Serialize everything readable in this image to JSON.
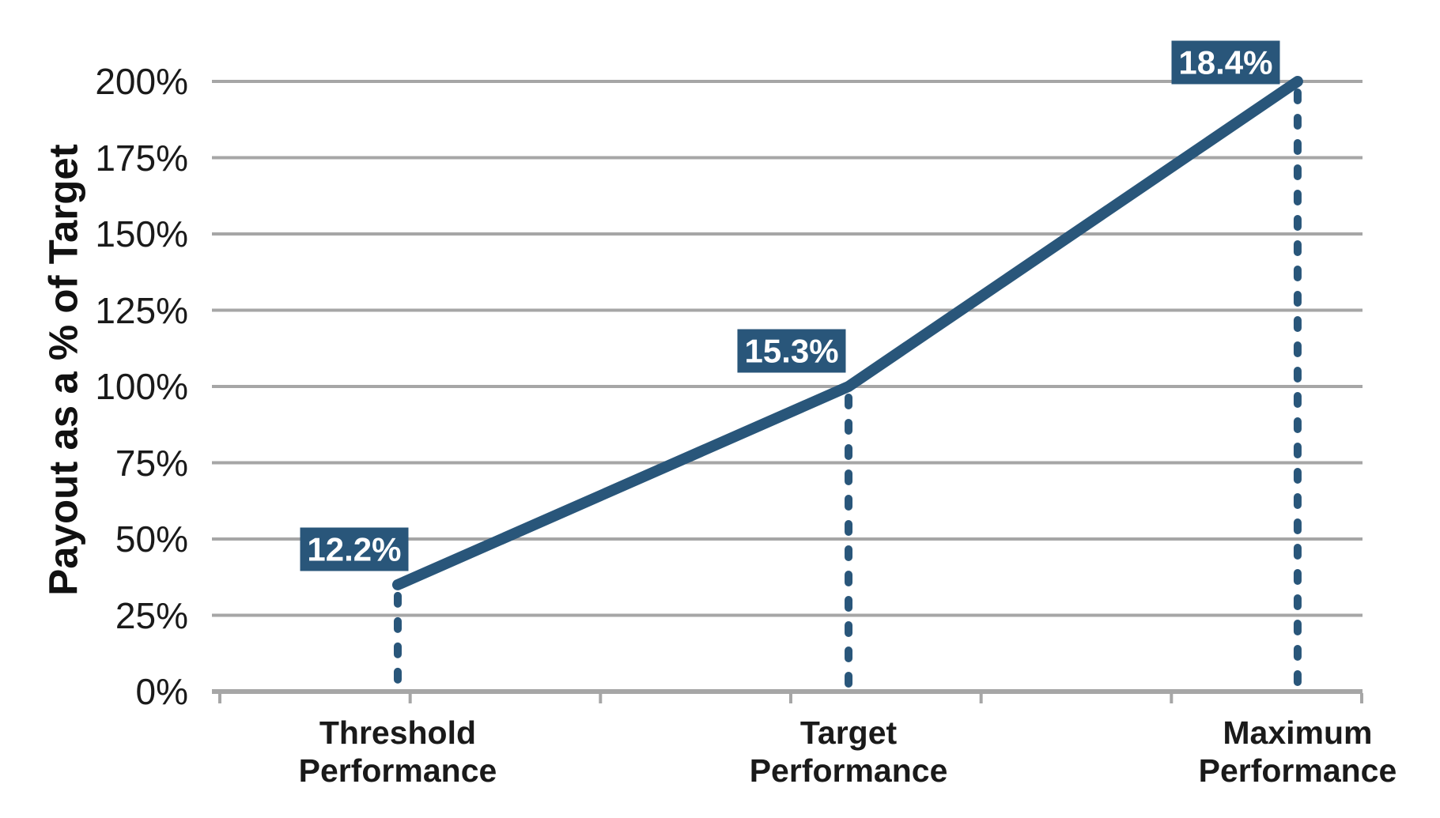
{
  "chart_data": {
    "type": "line",
    "title": "",
    "xlabel": "",
    "ylabel": "Payout as a % of Target",
    "categories": [
      [
        "Threshold",
        "Performance"
      ],
      [
        "Target",
        "Performance"
      ],
      [
        "Maximum",
        "Performance"
      ]
    ],
    "series": [
      {
        "name": "Payout as a % of Target",
        "values": [
          35,
          100,
          200
        ],
        "point_labels": [
          "12.2%",
          "15.3%",
          "18.4%"
        ]
      }
    ],
    "ylim": [
      0,
      200
    ],
    "y_ticks": [
      {
        "value": 0,
        "label": "0%"
      },
      {
        "value": 25,
        "label": "25%"
      },
      {
        "value": 50,
        "label": "50%"
      },
      {
        "value": 75,
        "label": "75%"
      },
      {
        "value": 100,
        "label": "100%"
      },
      {
        "value": 125,
        "label": "125%"
      },
      {
        "value": 150,
        "label": "150%"
      },
      {
        "value": 175,
        "label": "175%"
      },
      {
        "value": 200,
        "label": "200%"
      }
    ],
    "grid": true,
    "legend": false,
    "drop_lines": "dashed vertical lines from each data point to the x-axis",
    "colors": {
      "line": "#29567A",
      "grid": "#A6A6A6",
      "axis": "#A6A6A6",
      "label_bg": "#29567A",
      "label_text": "#FFFFFF",
      "text": "#1A1A1A"
    }
  }
}
